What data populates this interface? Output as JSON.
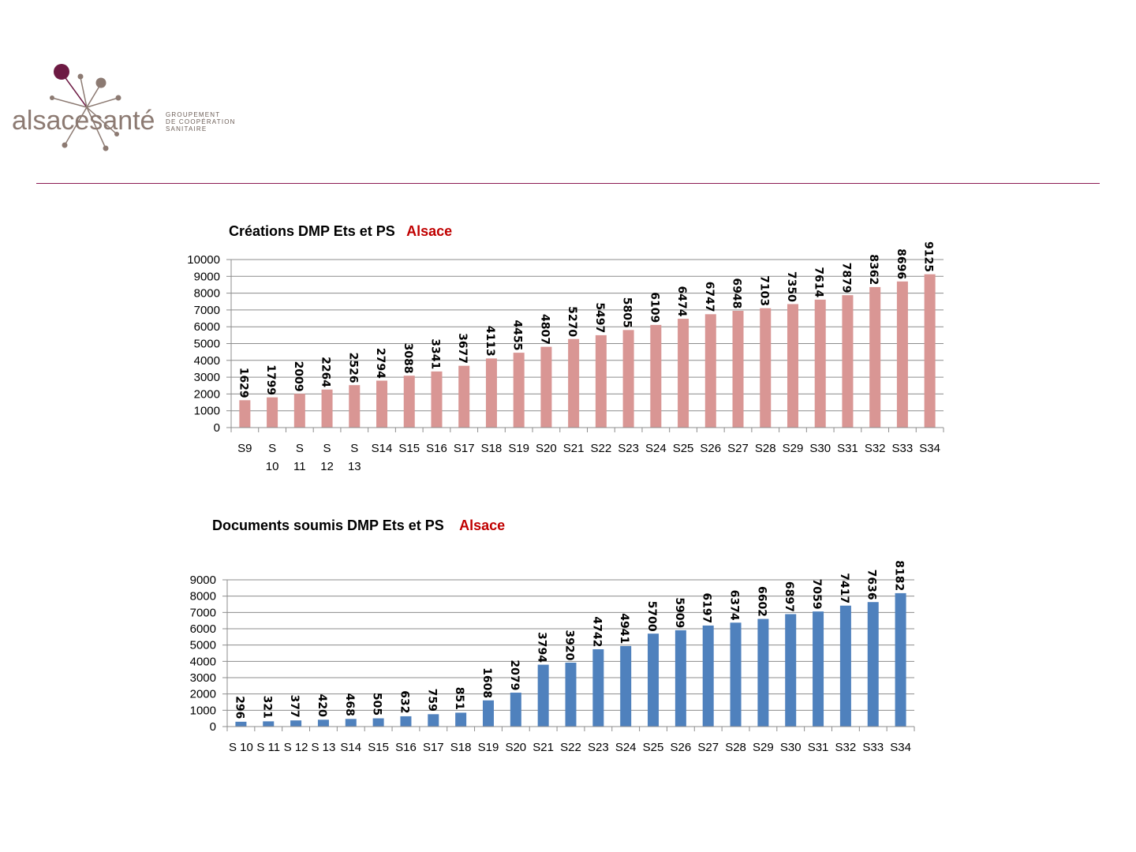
{
  "logo": {
    "brand_part1": "alsace",
    "brand_part2": "santé",
    "tagline_1": "GROUPEMENT",
    "tagline_2": "DE COOPÉRATION",
    "tagline_3": "SANITAIRE"
  },
  "colors": {
    "accent": "#8b1a52",
    "series1": "#d99694",
    "series2": "#4f81bd",
    "title_accent": "#c00000"
  },
  "chart_data": [
    {
      "type": "bar",
      "title": "Créations  DMP  Ets  et  PS",
      "title_accent": "Alsace",
      "categories": [
        "S9",
        "S 10",
        "S 11",
        "S 12",
        "S 13",
        "S14",
        "S15",
        "S16",
        "S17",
        "S18",
        "S19",
        "S20",
        "S21",
        "S22",
        "S23",
        "S24",
        "S25",
        "S26",
        "S27",
        "S28",
        "S29",
        "S30",
        "S31",
        "S32",
        "S33",
        "S34"
      ],
      "values": [
        1629,
        1799,
        2009,
        2264,
        2526,
        2794,
        3088,
        3341,
        3677,
        4113,
        4455,
        4807,
        5270,
        5497,
        5805,
        6109,
        6474,
        6747,
        6948,
        7103,
        7350,
        7614,
        7879,
        8362,
        8696,
        9125
      ],
      "yticks": [
        "0",
        "1000",
        "2000",
        "3000",
        "4000",
        "5000",
        "6000",
        "7000",
        "8000",
        "9000",
        "10000"
      ],
      "ylim": [
        0,
        10000
      ],
      "grid": true,
      "legend": "none",
      "color": "#d99694"
    },
    {
      "type": "bar",
      "title": "Documents soumis DMP   Ets  et  PS",
      "title_accent": "Alsace",
      "categories": [
        "S 10",
        "S 11",
        "S 12",
        "S 13",
        "S14",
        "S15",
        "S16",
        "S17",
        "S18",
        "S19",
        "S20",
        "S21",
        "S22",
        "S23",
        "S24",
        "S25",
        "S26",
        "S27",
        "S28",
        "S29",
        "S30",
        "S31",
        "S32",
        "S33",
        "S34"
      ],
      "values": [
        296,
        321,
        377,
        420,
        468,
        505,
        632,
        759,
        851,
        1608,
        2079,
        3794,
        3920,
        4742,
        4941,
        5700,
        5909,
        6197,
        6374,
        6602,
        6897,
        7059,
        7417,
        7636,
        8182
      ],
      "yticks": [
        "0",
        "1000",
        "2000",
        "3000",
        "4000",
        "5000",
        "6000",
        "7000",
        "8000",
        "9000"
      ],
      "ylim": [
        0,
        9000
      ],
      "grid": true,
      "legend": "none",
      "color": "#4f81bd"
    }
  ]
}
